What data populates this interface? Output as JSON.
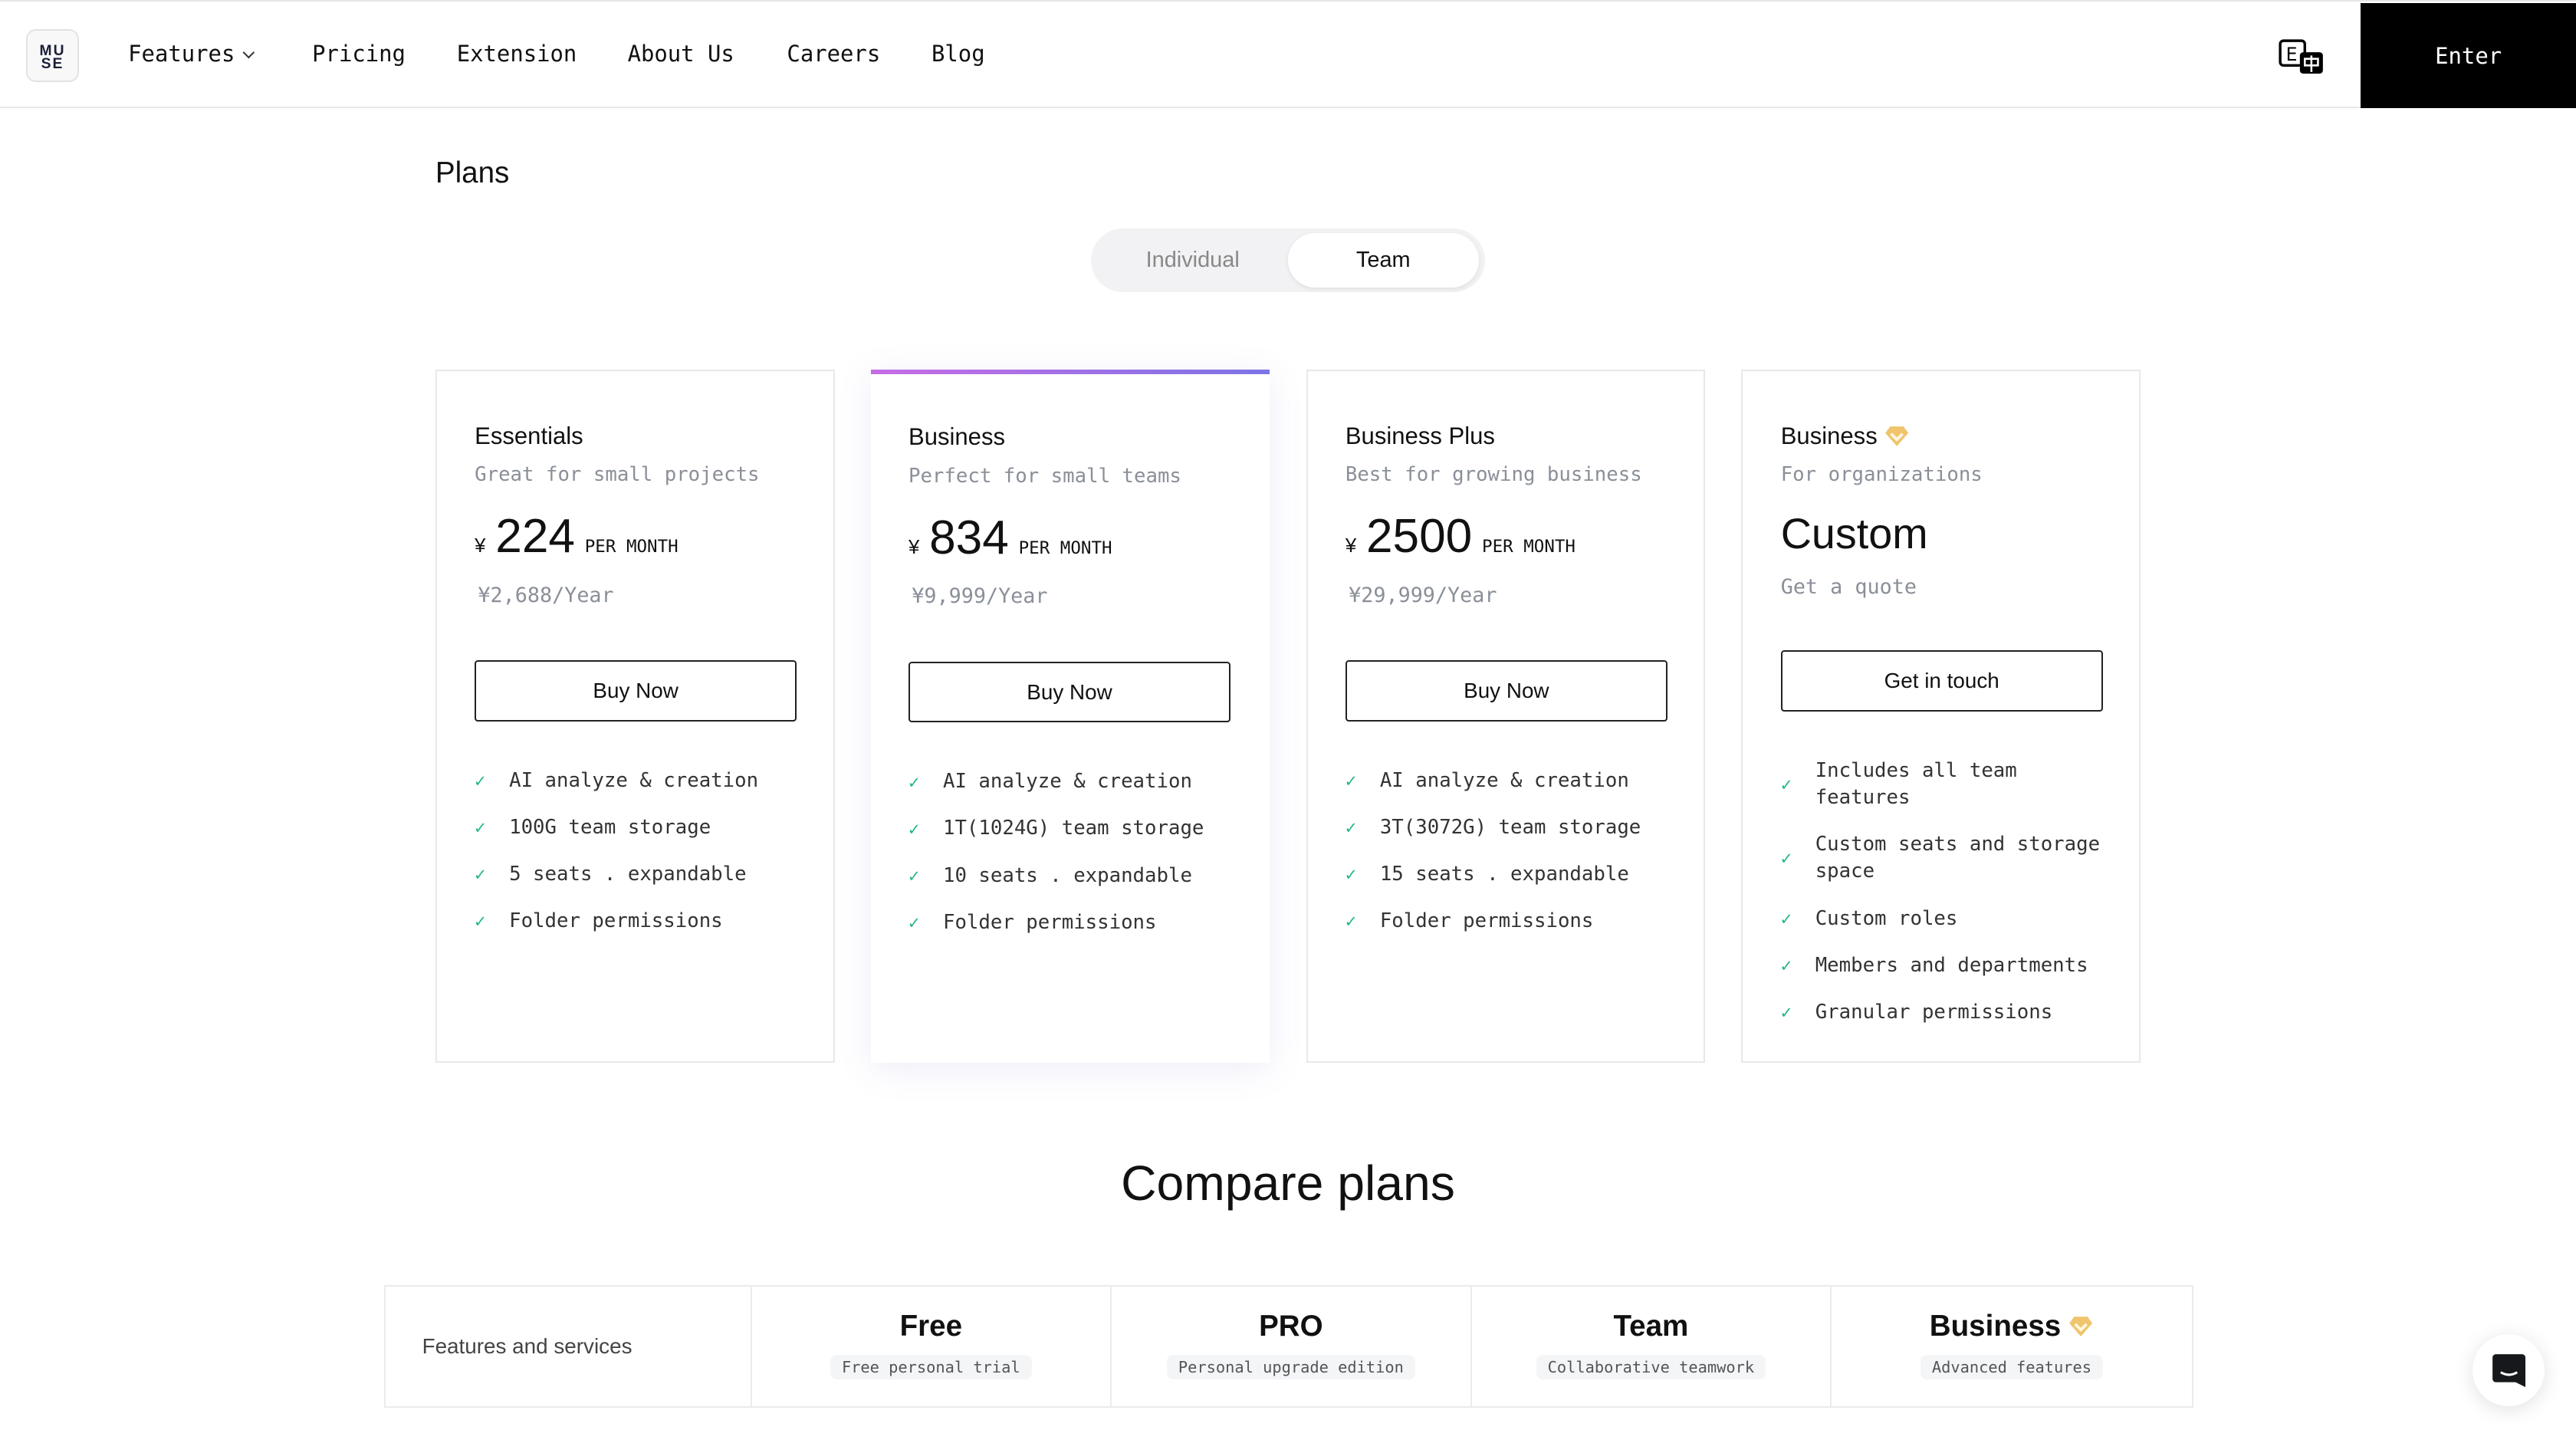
{
  "nav": {
    "logo": "MUSE",
    "logo_l1": "MU",
    "logo_l2": "SE",
    "items": [
      "Features",
      "Pricing",
      "Extension",
      "About Us",
      "Careers",
      "Blog"
    ],
    "enter": "Enter",
    "lang_icon": "translate-icon"
  },
  "plans": {
    "title": "Plans",
    "toggle": [
      "Individual",
      "Team"
    ],
    "active": "Team"
  },
  "colors": {
    "accent_gradient": [
      "#c86de6",
      "#7c74e6"
    ],
    "check": "#1fb58a",
    "diamond": "#f0c46c"
  },
  "cards": [
    {
      "title": "Essentials",
      "subtitle": "Great for small projects",
      "currency": "¥",
      "price": "224",
      "per": "PER MONTH",
      "year": "¥2,688/Year",
      "button": "Buy Now",
      "features": [
        "AI analyze & creation",
        "100G team storage",
        "5 seats . expandable",
        "Folder permissions"
      ]
    },
    {
      "title": "Business",
      "subtitle": "Perfect for small teams",
      "currency": "¥",
      "price": "834",
      "per": "PER MONTH",
      "year": "¥9,999/Year",
      "button": "Buy Now",
      "highlighted": true,
      "features": [
        "AI analyze & creation",
        "1T(1024G) team storage",
        "10 seats . expandable",
        "Folder permissions"
      ]
    },
    {
      "title": "Business Plus",
      "subtitle": "Best for growing business",
      "currency": "¥",
      "price": "2500",
      "per": "PER MONTH",
      "year": "¥29,999/Year",
      "button": "Buy Now",
      "features": [
        "AI analyze & creation",
        "3T(3072G) team storage",
        "15 seats . expandable",
        "Folder permissions"
      ]
    },
    {
      "title": "Business",
      "subtitle": "For organizations",
      "price": "Custom",
      "year": "Get a quote",
      "button": "Get in touch",
      "icon": "diamond-icon",
      "features": [
        "Includes all team features",
        "Custom seats and storage space",
        "Custom roles",
        "Members and departments",
        "Granular permissions"
      ]
    }
  ],
  "compare": {
    "title": "Compare plans",
    "first_col": "Features and services",
    "columns": [
      {
        "name": "Free",
        "tag": "Free personal trial"
      },
      {
        "name": "PRO",
        "tag": "Personal upgrade edition"
      },
      {
        "name": "Team",
        "tag": "Collaborative teamwork"
      },
      {
        "name": "Business",
        "tag": "Advanced features",
        "icon": "diamond-icon"
      }
    ]
  },
  "chat_icon": "chat-icon"
}
